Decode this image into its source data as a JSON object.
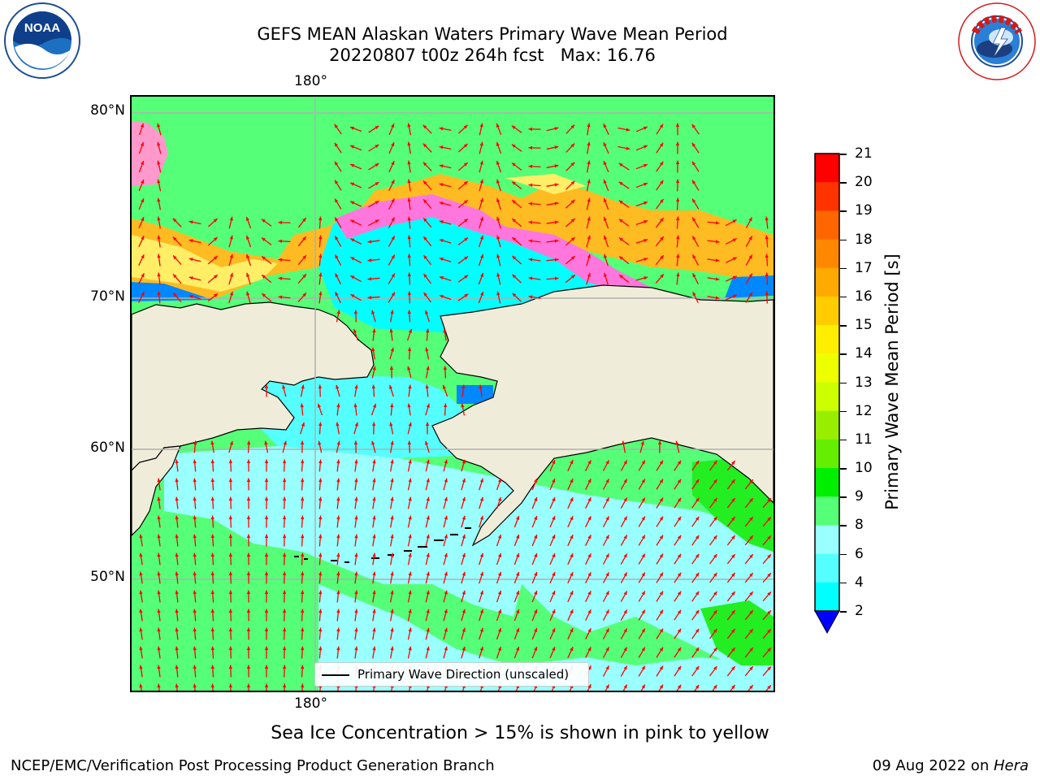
{
  "title": {
    "line1": "GEFS MEAN Alaskan Waters Primary Wave Mean Period",
    "line2": "20220807 t00z 264h fcst   Max: 16.76"
  },
  "map": {
    "lon_label_top": "180°",
    "lon_label_bottom": "180°",
    "lat_labels": [
      "80°N",
      "70°N",
      "60°N",
      "50°N"
    ],
    "legend_label": "Primary Wave Direction (unscaled)",
    "colors": {
      "land": "#efecd9",
      "coast": "#000000",
      "grid": "#b0b0b0",
      "arrow": "#ff0000"
    }
  },
  "colorbar": {
    "label": "Primary Wave Mean Period [s]",
    "ticks": [
      "21",
      "20",
      "19",
      "18",
      "17",
      "16",
      "15",
      "14",
      "13",
      "12",
      "11",
      "10",
      "9",
      "8",
      "6",
      "4",
      "2"
    ],
    "colors": [
      "#ff0000",
      "#ff3300",
      "#ff6600",
      "#ff8800",
      "#ffaa00",
      "#ffcc00",
      "#ffee00",
      "#eeff00",
      "#ccff00",
      "#99ee00",
      "#66ee00",
      "#00ee00",
      "#55ff77",
      "#99ffff",
      "#55ffff",
      "#00ffff",
      "#0088ff",
      "#0000ff"
    ]
  },
  "sea_ice_note": "Sea Ice Concentration > 15% is shown in pink to yellow",
  "footer": {
    "left": "NCEP/EMC/Verification Post Processing Product Generation Branch",
    "date": "09 Aug 2022 on ",
    "machine": "Hera"
  },
  "logos": {
    "noaa": "NOAA",
    "noaa_ring": "NATIONAL OCEANIC AND ATMOSPHERIC ADMINISTRATION · U.S. DEPARTMENT OF COMMERCE",
    "nws_ring": "NATIONAL WEATHER SERVICE"
  }
}
